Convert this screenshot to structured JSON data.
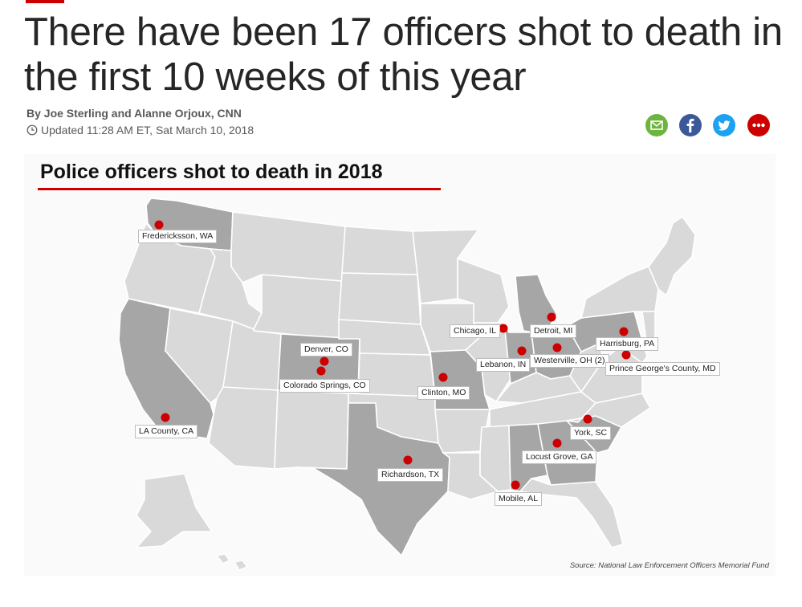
{
  "article": {
    "headline": "There have been 17 officers shot to death in the first 10 weeks of this year",
    "byline": "By Joe Sterling and Alanne Orjoux, CNN",
    "updated": "Updated 11:28 AM ET, Sat March 10, 2018"
  },
  "share": [
    {
      "name": "email-share-button",
      "icon": "email-icon",
      "color": "#6eb43f"
    },
    {
      "name": "facebook-share-button",
      "icon": "facebook-icon",
      "color": "#3b5998"
    },
    {
      "name": "twitter-share-button",
      "icon": "twitter-icon",
      "color": "#1da1f2"
    },
    {
      "name": "more-share-button",
      "icon": "more-icon",
      "color": "#cc0000"
    }
  ],
  "map": {
    "title": "Police officers shot to death in 2018",
    "source": "Source: National Law Enforcement Officers Memorial Fund",
    "accent_color": "#cc0000",
    "highlighted_state_color": "#a6a6a6",
    "other_state_color": "#d9d9d9",
    "locations": [
      "Fredericksson, WA",
      "Denver, CO",
      "Colorado Springs, CO",
      "LA County, CA",
      "Richardson, TX",
      "Clinton, MO",
      "Chicago, IL",
      "Lebanon, IN",
      "Detroit, MI",
      "Westerville, OH (2)",
      "Harrisburg, PA",
      "Prince George's County, MD",
      "York, SC",
      "Locust Grove, GA",
      "Mobile, AL"
    ]
  }
}
